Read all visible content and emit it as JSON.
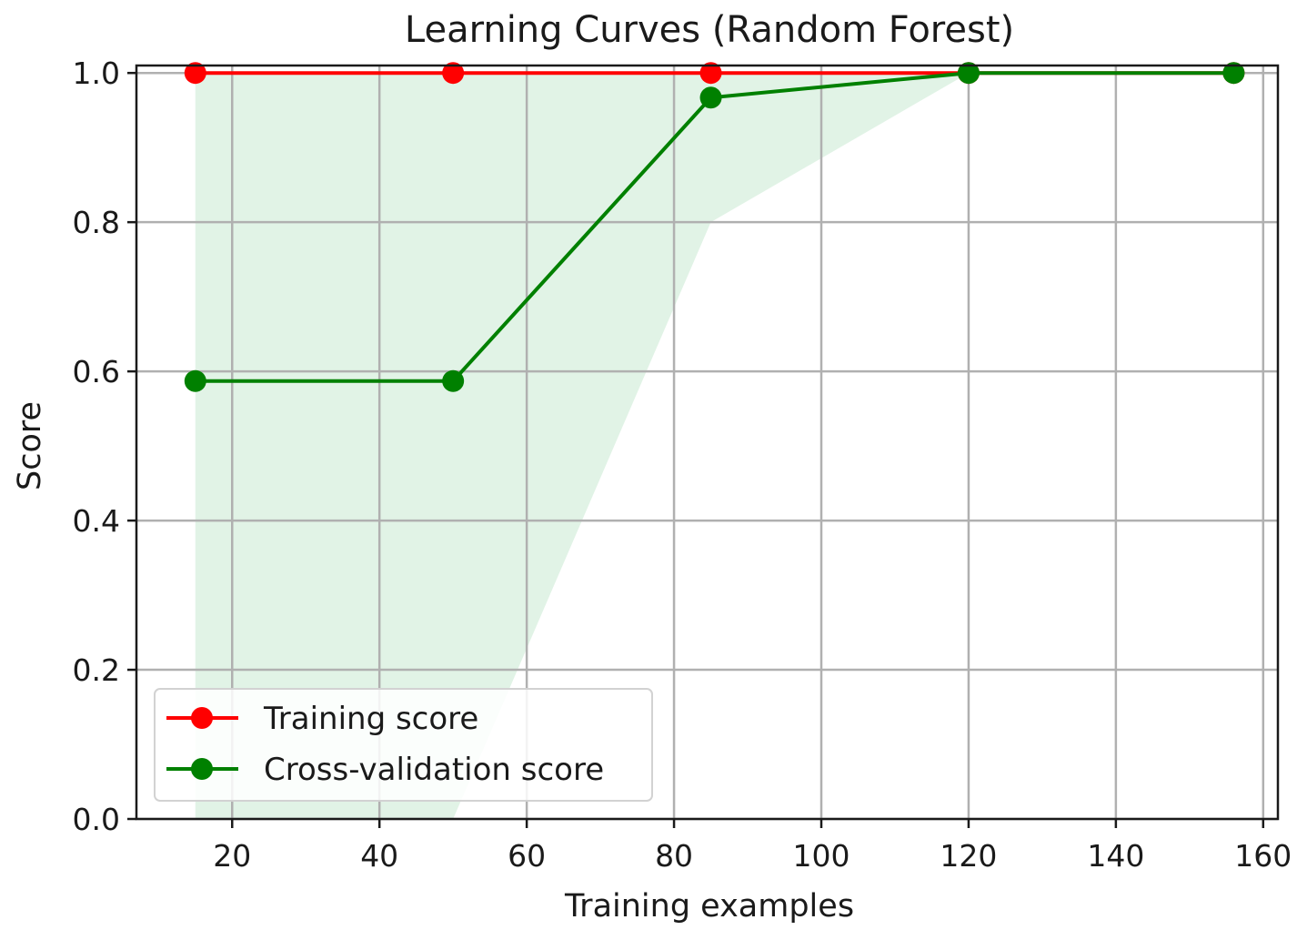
{
  "chart_data": {
    "type": "line",
    "title": "Learning Curves (Random Forest)",
    "xlabel": "Training examples",
    "ylabel": "Score",
    "xlim": [
      7,
      162
    ],
    "ylim": [
      0.0,
      1.01
    ],
    "xticks": [
      20,
      40,
      60,
      80,
      100,
      120,
      140,
      160
    ],
    "xtick_labels": [
      "20",
      "40",
      "60",
      "80",
      "100",
      "120",
      "140",
      "160"
    ],
    "yticks": [
      0.0,
      0.2,
      0.4,
      0.6,
      0.8,
      1.0
    ],
    "ytick_labels": [
      "0.0",
      "0.2",
      "0.4",
      "0.6",
      "0.8",
      "1.0"
    ],
    "grid": true,
    "legend_position": "lower-left",
    "x": [
      15,
      50,
      85,
      120,
      156
    ],
    "series": [
      {
        "name": "Training score",
        "color": "#ff0000",
        "values": [
          1.0,
          1.0,
          1.0,
          1.0,
          1.0
        ],
        "band_lower": [
          1.0,
          1.0,
          1.0,
          1.0,
          1.0
        ],
        "band_upper": [
          1.0,
          1.0,
          1.0,
          1.0,
          1.0
        ]
      },
      {
        "name": "Cross-validation score",
        "color": "#008000",
        "band_color": "#b8e2c4",
        "values": [
          0.587,
          0.587,
          0.967,
          1.0,
          1.0
        ],
        "band_lower": [
          0.0,
          0.0,
          0.8,
          1.0,
          1.0
        ],
        "band_upper": [
          1.0,
          1.0,
          1.0,
          1.0,
          1.0
        ]
      }
    ]
  }
}
